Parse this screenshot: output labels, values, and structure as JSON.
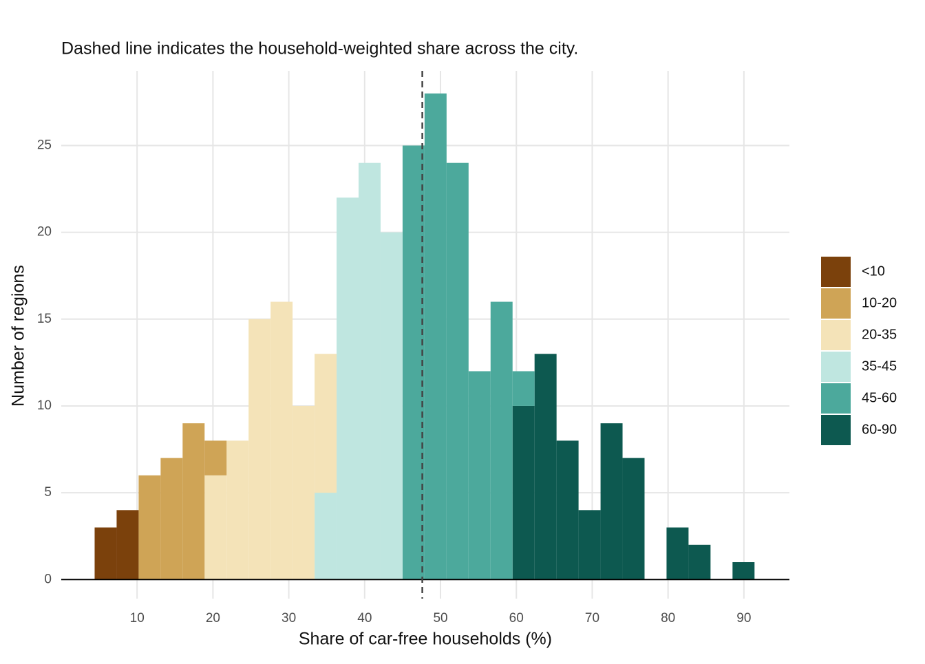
{
  "chart_data": {
    "type": "histogram",
    "subtitle": "Dashed line indicates the household-weighted share across the city.",
    "x_label": "Share of car-free households (%)",
    "y_label": "Number of regions",
    "bins": [
      4.4,
      7.3,
      10.2,
      13.1,
      16,
      18.9,
      21.8,
      24.7,
      27.6,
      30.5,
      33.4,
      36.3,
      39.2,
      42.1,
      45,
      47.9,
      50.8,
      53.7,
      56.6,
      59.5,
      62.4,
      65.3,
      68.2,
      71.1,
      74,
      76.9,
      79.8,
      82.7,
      85.6,
      88.5,
      91.4
    ],
    "series": [
      {
        "name": "<10",
        "color": "#7b410c",
        "values": [
          3,
          4,
          0,
          0,
          0,
          0,
          0,
          0,
          0,
          0,
          0,
          0,
          0,
          0,
          0,
          0,
          0,
          0,
          0,
          0,
          0,
          0,
          0,
          0,
          0,
          0,
          0,
          0,
          0,
          0
        ]
      },
      {
        "name": "10-20",
        "color": "#cfa456",
        "values": [
          0,
          0,
          6,
          7,
          9,
          2,
          0,
          0,
          0,
          0,
          0,
          0,
          0,
          0,
          0,
          0,
          0,
          0,
          0,
          0,
          0,
          0,
          0,
          0,
          0,
          0,
          0,
          0,
          0,
          0
        ]
      },
      {
        "name": "20-35",
        "color": "#f4e3b8",
        "values": [
          0,
          0,
          0,
          0,
          0,
          6,
          8,
          15,
          16,
          10,
          8,
          0,
          0,
          0,
          0,
          0,
          0,
          0,
          0,
          0,
          0,
          0,
          0,
          0,
          0,
          0,
          0,
          0,
          0,
          0
        ]
      },
      {
        "name": "35-45",
        "color": "#bfe6e0",
        "values": [
          0,
          0,
          0,
          0,
          0,
          0,
          0,
          0,
          0,
          0,
          5,
          22,
          24,
          20,
          0,
          0,
          0,
          0,
          0,
          0,
          0,
          0,
          0,
          0,
          0,
          0,
          0,
          0,
          0,
          0
        ]
      },
      {
        "name": "45-60",
        "color": "#4ca99c",
        "values": [
          0,
          0,
          0,
          0,
          0,
          0,
          0,
          0,
          0,
          0,
          0,
          0,
          0,
          0,
          25,
          28,
          24,
          12,
          16,
          2,
          0,
          0,
          0,
          0,
          0,
          0,
          0,
          0,
          0,
          0
        ]
      },
      {
        "name": "60-90",
        "color": "#0d5950",
        "values": [
          0,
          0,
          0,
          0,
          0,
          0,
          0,
          0,
          0,
          0,
          0,
          0,
          0,
          0,
          0,
          0,
          0,
          0,
          0,
          10,
          13,
          8,
          4,
          9,
          7,
          0,
          3,
          2,
          0,
          1
        ]
      }
    ],
    "reference_line": {
      "value": 47.6
    },
    "xlim": [
      0,
      96
    ],
    "ylim": [
      -1.1,
      29.3
    ],
    "xticks": [
      10,
      20,
      30,
      40,
      50,
      60,
      70,
      80,
      90
    ],
    "yticks": [
      0,
      5,
      10,
      15,
      20,
      25
    ],
    "grid": true
  }
}
